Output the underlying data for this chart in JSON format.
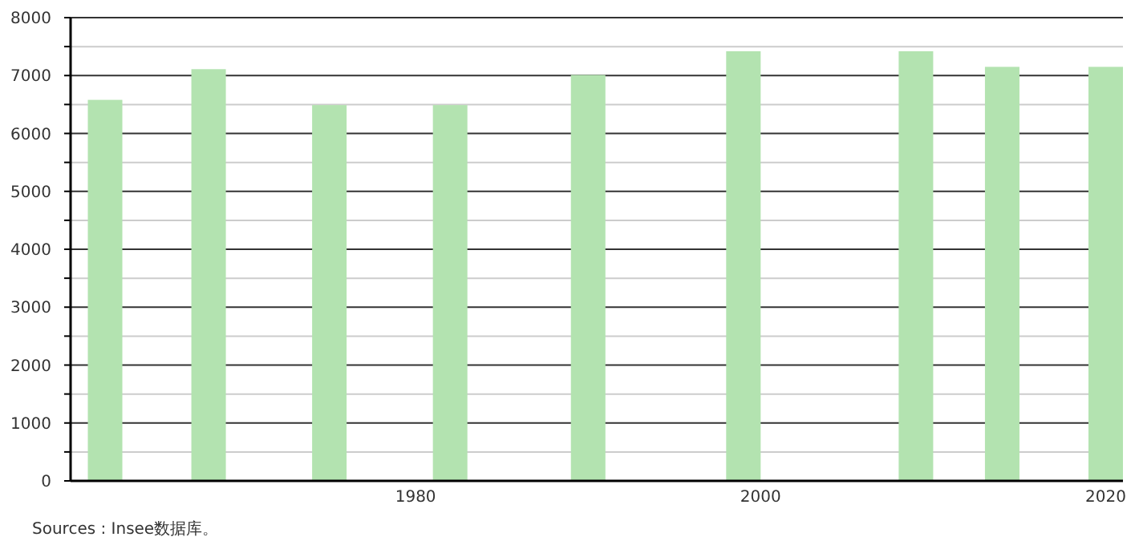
{
  "chart_data": {
    "type": "bar",
    "x": [
      1962,
      1968,
      1975,
      1982,
      1990,
      1999,
      2009,
      2014,
      2020
    ],
    "values": [
      6580,
      7110,
      6490,
      6490,
      7010,
      7420,
      7420,
      7150,
      7150
    ],
    "color": "#b3e3b0",
    "xlim": [
      1960,
      2021
    ],
    "xticks": [
      1980,
      2000,
      2020
    ],
    "ylim": [
      0,
      8000
    ],
    "yticks": [
      0,
      {
        "value": 500,
        "label": null
      },
      1000,
      {
        "value": 1500,
        "label": null
      },
      2000,
      {
        "value": 2500,
        "label": null
      },
      3000,
      {
        "value": 3500,
        "label": null
      },
      4000,
      {
        "value": 4500,
        "label": null
      },
      5000,
      {
        "value": 5500,
        "label": null
      },
      6000,
      {
        "value": 6500,
        "label": null
      },
      7000,
      {
        "value": 7500,
        "label": null
      },
      8000
    ],
    "grid": "y",
    "annotations": [
      "Sources : Insee数据库。"
    ]
  }
}
